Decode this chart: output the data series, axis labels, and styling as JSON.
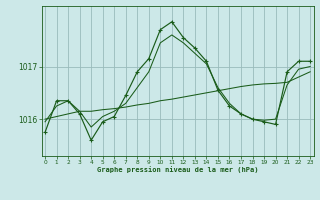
{
  "title": "Graphe pression niveau de la mer (hPa)",
  "bg_color": "#cce8e8",
  "grid_color": "#99bbbb",
  "line_color": "#1a5c1a",
  "hours": [
    0,
    1,
    2,
    3,
    4,
    5,
    6,
    7,
    8,
    9,
    10,
    11,
    12,
    13,
    14,
    15,
    16,
    17,
    18,
    19,
    20,
    21,
    22,
    23
  ],
  "pressure_main": [
    1015.75,
    1016.35,
    1016.35,
    1016.1,
    1015.6,
    1015.95,
    1016.05,
    1016.45,
    1016.9,
    1017.15,
    1017.7,
    1017.85,
    1017.55,
    1017.35,
    1017.1,
    1016.55,
    1016.25,
    1016.1,
    1016.0,
    1015.95,
    1015.9,
    1016.9,
    1017.1,
    1017.1
  ],
  "pressure_smooth": [
    1015.95,
    1016.25,
    1016.35,
    1016.15,
    1015.85,
    1016.05,
    1016.15,
    1016.3,
    1016.6,
    1016.9,
    1017.45,
    1017.6,
    1017.45,
    1017.25,
    1017.05,
    1016.6,
    1016.3,
    1016.1,
    1016.0,
    1015.98,
    1016.0,
    1016.65,
    1016.95,
    1017.0
  ],
  "pressure_trend": [
    1016.0,
    1016.05,
    1016.1,
    1016.15,
    1016.15,
    1016.18,
    1016.2,
    1016.23,
    1016.27,
    1016.3,
    1016.35,
    1016.38,
    1016.42,
    1016.46,
    1016.5,
    1016.54,
    1016.58,
    1016.62,
    1016.65,
    1016.67,
    1016.68,
    1016.7,
    1016.8,
    1016.9
  ],
  "yticks": [
    1016,
    1017
  ],
  "ylim": [
    1015.3,
    1018.15
  ],
  "xlim": [
    -0.3,
    23.3
  ]
}
